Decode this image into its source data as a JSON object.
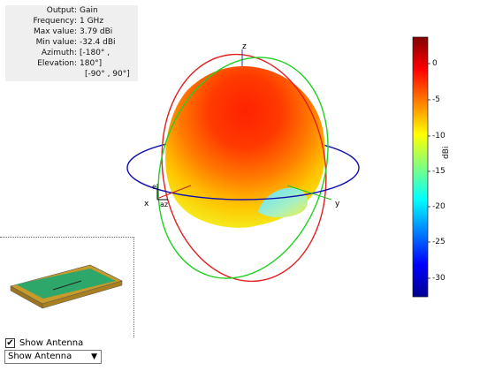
{
  "info_panel": {
    "rows": [
      {
        "key": "Output",
        "value": "Gain"
      },
      {
        "key": "Frequency",
        "value": "1 GHz"
      },
      {
        "key": "Max value",
        "value": "3.79 dBi"
      },
      {
        "key": "Min value",
        "value": "-32.4 dBi"
      },
      {
        "key": "Azimuth",
        "value": "[-180° ,"
      },
      {
        "key": "Elevation",
        "value": "180°]"
      }
    ],
    "continuation": "[-90° , 90°]"
  },
  "axes": {
    "z": "z",
    "x": "x",
    "y": "y",
    "el": "el",
    "az": "az"
  },
  "colorbar": {
    "unit": "dBi",
    "ticks": [
      "0",
      "-5",
      "-10",
      "-15",
      "-20",
      "-25",
      "-30"
    ],
    "range": [
      -32.4,
      3.79
    ],
    "colormap": "jet"
  },
  "controls": {
    "show_antenna_label": "Show Antenna",
    "show_antenna_checked": true,
    "dropdown_value": "Show Antenna"
  },
  "colors": {
    "xy_circle": "#1010b0",
    "xz_circle": "#e02020",
    "yz_circle": "#20d020"
  }
}
